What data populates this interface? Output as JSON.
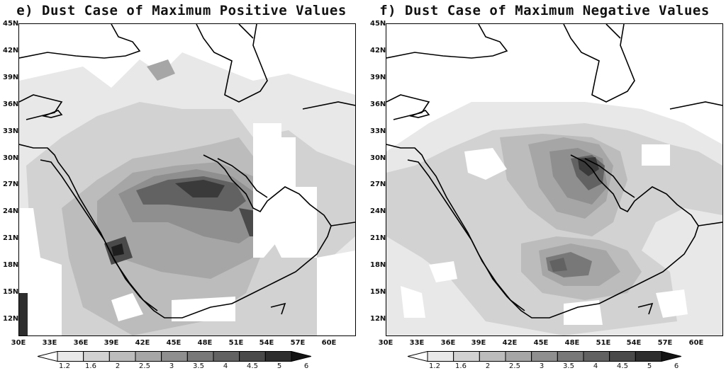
{
  "panels": [
    {
      "title": "e) Dust Case of Maximum Positive Values",
      "lat_labels": [
        "45N",
        "42N",
        "39N",
        "36N",
        "33N",
        "30N",
        "27N",
        "24N",
        "21N",
        "18N",
        "15N",
        "12N"
      ],
      "lon_labels": [
        "30E",
        "33E",
        "36E",
        "39E",
        "42E",
        "45E",
        "48E",
        "51E",
        "54E",
        "57E",
        "60E"
      ],
      "colorbar_labels": [
        "1.2",
        "1.6",
        "2",
        "2.5",
        "3",
        "3.5",
        "4",
        "4.5",
        "5",
        "6"
      ],
      "colorbar_colors": [
        "#ffffff",
        "#e8e8e8",
        "#d2d2d2",
        "#bcbcbc",
        "#a6a6a6",
        "#8f8f8f",
        "#787878",
        "#626262",
        "#4a4a4a",
        "#2e2e2e",
        "#141414"
      ]
    },
    {
      "title": "f) Dust Case of Maximum Negative Values",
      "lat_labels": [
        "45N",
        "42N",
        "39N",
        "36N",
        "33N",
        "30N",
        "27N",
        "24N",
        "21N",
        "18N",
        "15N",
        "12N"
      ],
      "lon_labels": [
        "30E",
        "33E",
        "36E",
        "39E",
        "42E",
        "45E",
        "48E",
        "51E",
        "54E",
        "57E",
        "60E"
      ],
      "colorbar_labels": [
        "1.2",
        "1.6",
        "2",
        "2.5",
        "3",
        "3.5",
        "4",
        "4.5",
        "5",
        "6"
      ],
      "colorbar_colors": [
        "#ffffff",
        "#e8e8e8",
        "#d2d2d2",
        "#bcbcbc",
        "#a6a6a6",
        "#8f8f8f",
        "#787878",
        "#626262",
        "#4a4a4a",
        "#2e2e2e",
        "#141414"
      ]
    }
  ],
  "map_extent": {
    "lon_min": 30,
    "lon_max": 62.5,
    "lat_min": 10,
    "lat_max": 45
  }
}
